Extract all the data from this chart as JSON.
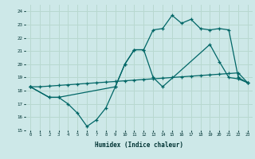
{
  "xlabel": "Humidex (Indice chaleur)",
  "bg_color": "#cde8e8",
  "grid_color": "#b8d8d0",
  "line_color": "#006666",
  "xlim": [
    -0.5,
    23.5
  ],
  "ylim": [
    15,
    24.5
  ],
  "yticks": [
    15,
    16,
    17,
    18,
    19,
    20,
    21,
    22,
    23,
    24
  ],
  "xticks": [
    0,
    1,
    2,
    3,
    4,
    5,
    6,
    7,
    8,
    9,
    10,
    11,
    12,
    13,
    14,
    15,
    16,
    17,
    18,
    19,
    20,
    21,
    22,
    23
  ],
  "line1_x": [
    0,
    1,
    2,
    3,
    4,
    5,
    6,
    7,
    8,
    9,
    10,
    11,
    12,
    13,
    14,
    15,
    16,
    17,
    18,
    19,
    20,
    21,
    22,
    23
  ],
  "line1_y": [
    18.3,
    18.3,
    18.35,
    18.4,
    18.45,
    18.5,
    18.55,
    18.6,
    18.65,
    18.7,
    18.75,
    18.8,
    18.85,
    18.9,
    18.95,
    19.0,
    19.05,
    19.1,
    19.15,
    19.2,
    19.25,
    19.3,
    19.35,
    18.6
  ],
  "line2_x": [
    0,
    2,
    3,
    4,
    5,
    6,
    7,
    8,
    9,
    10,
    11,
    12,
    13,
    14,
    19,
    20,
    21,
    22,
    23
  ],
  "line2_y": [
    18.3,
    17.5,
    17.5,
    17.0,
    16.3,
    15.3,
    15.8,
    16.7,
    18.3,
    20.0,
    21.1,
    21.1,
    19.0,
    18.3,
    21.5,
    20.2,
    19.0,
    18.9,
    18.6
  ],
  "line3_x": [
    0,
    2,
    3,
    9,
    10,
    11,
    12,
    13,
    14,
    15,
    16,
    17,
    18,
    19,
    20,
    21,
    22,
    23
  ],
  "line3_y": [
    18.3,
    17.5,
    17.5,
    18.3,
    20.0,
    21.1,
    21.1,
    22.6,
    22.7,
    23.7,
    23.1,
    23.4,
    22.7,
    22.6,
    22.7,
    22.6,
    19.0,
    18.6
  ]
}
